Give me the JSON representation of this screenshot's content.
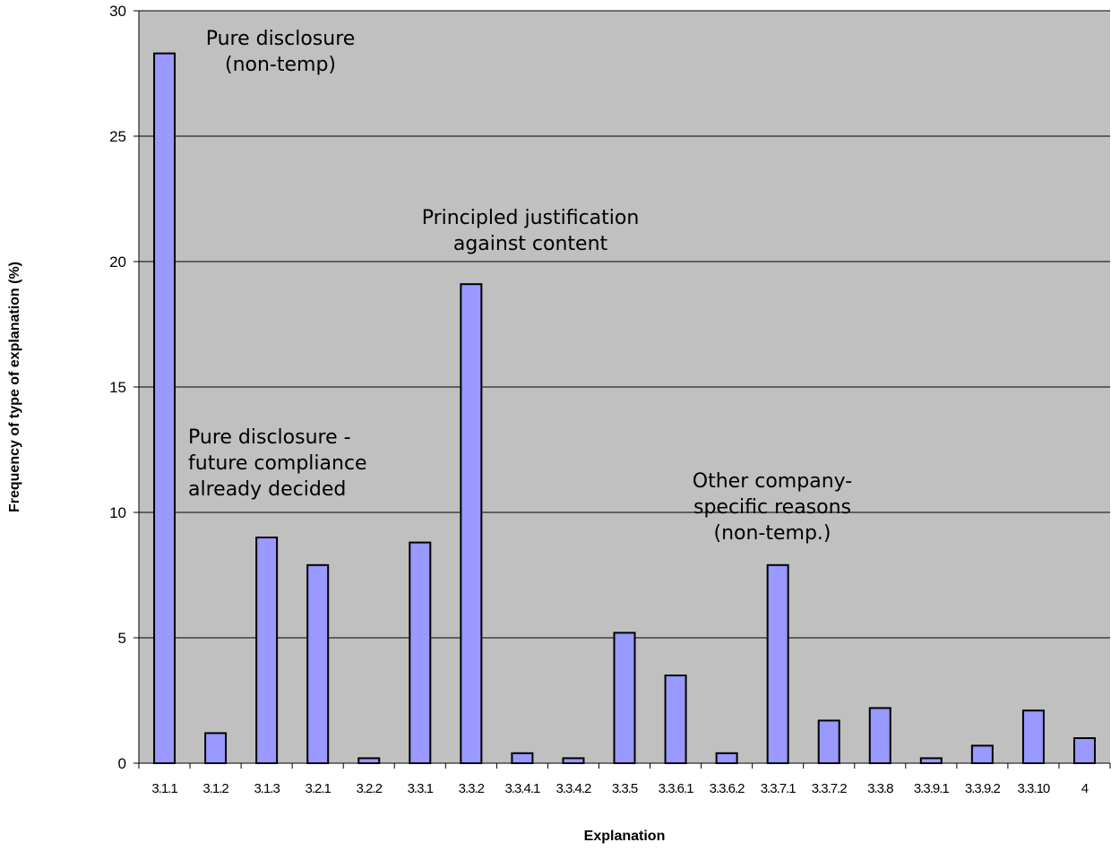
{
  "chart_data": {
    "type": "bar",
    "xlabel": "Explanation",
    "ylabel": "Frequency of type of explanation (%)",
    "ylim": [
      0,
      30
    ],
    "yticks": [
      0,
      5,
      10,
      15,
      20,
      25,
      30
    ],
    "grid": true,
    "categories": [
      "3.1.1",
      "3.1.2",
      "3.1.3",
      "3.2.1",
      "3.2.2",
      "3.3.1",
      "3.3.2",
      "3.3.4.1",
      "3.3.4.2",
      "3.3.5",
      "3.3.6.1",
      "3.3.6.2",
      "3.3.7.1",
      "3.3.7.2",
      "3.3.8",
      "3.3.9.1",
      "3.3.9.2",
      "3.3.10",
      "4"
    ],
    "values": [
      28.3,
      1.2,
      9.0,
      7.9,
      0.2,
      8.8,
      19.1,
      0.4,
      0.2,
      5.2,
      3.5,
      0.4,
      7.9,
      1.7,
      2.2,
      0.2,
      0.7,
      2.1,
      1.0
    ],
    "colors": {
      "plot_background": "#c0c0c0",
      "bar_fill": "#9999ff",
      "bar_stroke": "#000000",
      "gridline": "#000000"
    },
    "annotations": [
      {
        "lines": [
          "Pure disclosure",
          "(non-temp)"
        ]
      },
      {
        "lines": [
          "Principled justification",
          "against content"
        ]
      },
      {
        "lines": [
          "Pure disclosure -",
          "future compliance",
          "already decided"
        ]
      },
      {
        "lines": [
          "Other company-",
          "specific reasons",
          "(non-temp.)"
        ]
      }
    ]
  }
}
